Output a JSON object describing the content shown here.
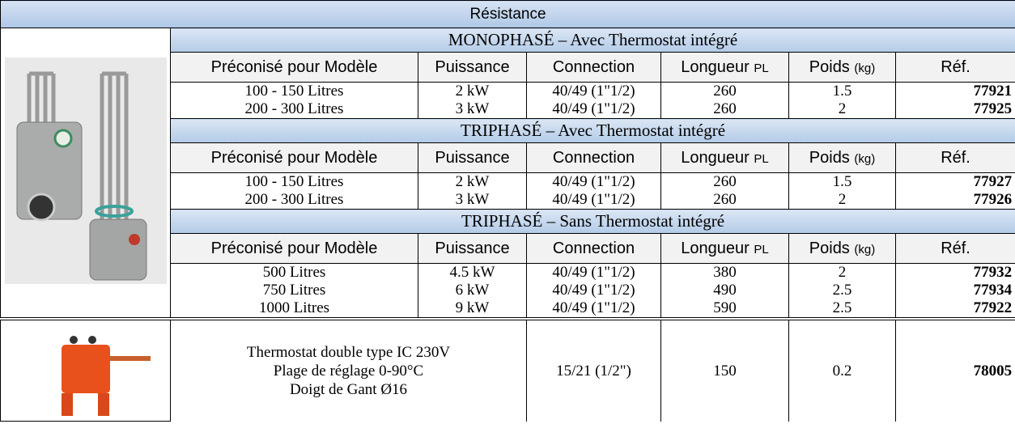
{
  "title": "Résistance",
  "sections": [
    {
      "heading": "MONOPHASÉ – Avec Thermostat intégré",
      "columns": [
        {
          "label": "Préconisé pour Modèle"
        },
        {
          "label": "Puissance"
        },
        {
          "label": "Connection"
        },
        {
          "label": "Longueur",
          "unit": "PL"
        },
        {
          "label": "Poids",
          "unit": "(kg)"
        },
        {
          "label": "Réf."
        }
      ],
      "rows": [
        [
          "100 - 150 Litres",
          "2 kW",
          "40/49 (1\"1/2)",
          "260",
          "1.5",
          "77921"
        ],
        [
          "200 - 300 Litres",
          "3 kW",
          "40/49 (1\"1/2)",
          "260",
          "2",
          "77925"
        ]
      ]
    },
    {
      "heading": "TRIPHASÉ – Avec Thermostat intégré",
      "columns": [
        {
          "label": "Préconisé pour Modèle"
        },
        {
          "label": "Puissance"
        },
        {
          "label": "Connection"
        },
        {
          "label": "Longueur",
          "unit": "PL"
        },
        {
          "label": "Poids",
          "unit": "(kg)"
        },
        {
          "label": "Réf."
        }
      ],
      "rows": [
        [
          "100 - 150 Litres",
          "2 kW",
          "40/49 (1\"1/2)",
          "260",
          "1.5",
          "77927"
        ],
        [
          "200 - 300 Litres",
          "3 kW",
          "40/49 (1\"1/2)",
          "260",
          "2",
          "77926"
        ]
      ]
    },
    {
      "heading": "TRIPHASÉ – Sans Thermostat intégré",
      "columns": [
        {
          "label": "Préconisé pour Modèle"
        },
        {
          "label": "Puissance"
        },
        {
          "label": "Connection"
        },
        {
          "label": "Longueur",
          "unit": "PL"
        },
        {
          "label": "Poids",
          "unit": "(kg)"
        },
        {
          "label": "Réf."
        }
      ],
      "rows": [
        [
          "500 Litres",
          "4.5 kW",
          "40/49 (1\"1/2)",
          "380",
          "2",
          "77932"
        ],
        [
          "750 Litres",
          "6 kW",
          "40/49 (1\"1/2)",
          "490",
          "2.5",
          "77934"
        ],
        [
          "1000 Litres",
          "9 kW",
          "40/49 (1\"1/2)",
          "590",
          "2.5",
          "77922"
        ]
      ]
    }
  ],
  "accessory": {
    "description": [
      "Thermostat double type IC 230V",
      "Plage de réglage 0-90°C",
      "Doigt de Gant Ø16"
    ],
    "connection": "15/21 (1/2\")",
    "length": "150",
    "weight": "0.2",
    "ref": "78005"
  }
}
